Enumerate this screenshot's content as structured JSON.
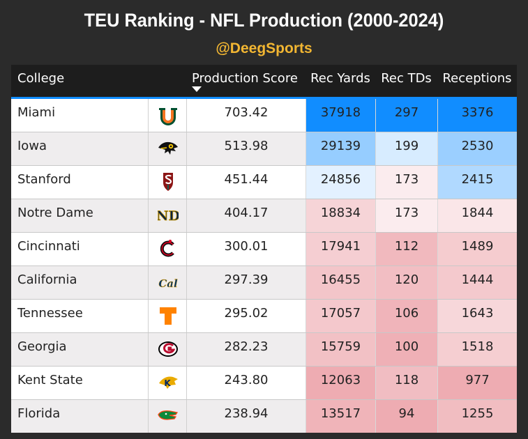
{
  "title": "TEU Ranking - NFL Production (2000-2024)",
  "subtitle": "@DeegSports",
  "columns": [
    "College",
    "Production Score",
    "Rec Yards",
    "Rec TDs",
    "Receptions"
  ],
  "colors": {
    "header_bg": "#1d1d1d",
    "accent": "#118dff",
    "subtitle": "#f2b632",
    "row_odd": "#ffffff",
    "row_even": "#efedee",
    "high": "#118dff",
    "mid": "#ffffff",
    "low": "#eeacb2"
  },
  "chart_data": {
    "type": "table",
    "title": "TEU Ranking - NFL Production (2000-2024)",
    "subtitle": "@DeegSports",
    "sorted_by": "Production Score",
    "sort_order": "descending",
    "columns": [
      "College",
      "Production Score",
      "Rec Yards",
      "Rec TDs",
      "Receptions"
    ],
    "rows": [
      {
        "college": "Miami",
        "logo": "miami-u-logo-icon",
        "score": "703.42",
        "yards": 37918,
        "tds": 297,
        "receptions": 3376
      },
      {
        "college": "Iowa",
        "logo": "iowa-hawkeye-logo-icon",
        "score": "513.98",
        "yards": 29139,
        "tds": 199,
        "receptions": 2530
      },
      {
        "college": "Stanford",
        "logo": "stanford-s-logo-icon",
        "score": "451.44",
        "yards": 24856,
        "tds": 173,
        "receptions": 2415
      },
      {
        "college": "Notre Dame",
        "logo": "notre-dame-nd-logo-icon",
        "score": "404.17",
        "yards": 18834,
        "tds": 173,
        "receptions": 1844
      },
      {
        "college": "Cincinnati",
        "logo": "cincinnati-c-logo-icon",
        "score": "300.01",
        "yards": 17941,
        "tds": 112,
        "receptions": 1489
      },
      {
        "college": "California",
        "logo": "cal-script-logo-icon",
        "score": "297.39",
        "yards": 16455,
        "tds": 120,
        "receptions": 1444
      },
      {
        "college": "Tennessee",
        "logo": "tennessee-t-logo-icon",
        "score": "295.02",
        "yards": 17057,
        "tds": 106,
        "receptions": 1643
      },
      {
        "college": "Georgia",
        "logo": "georgia-g-logo-icon",
        "score": "282.23",
        "yards": 15759,
        "tds": 100,
        "receptions": 1518
      },
      {
        "college": "Kent State",
        "logo": "kent-state-k-logo-icon",
        "score": "243.80",
        "yards": 12063,
        "tds": 118,
        "receptions": 977
      },
      {
        "college": "Florida",
        "logo": "florida-gator-logo-icon",
        "score": "238.94",
        "yards": 13517,
        "tds": 94,
        "receptions": 1255
      }
    ]
  }
}
